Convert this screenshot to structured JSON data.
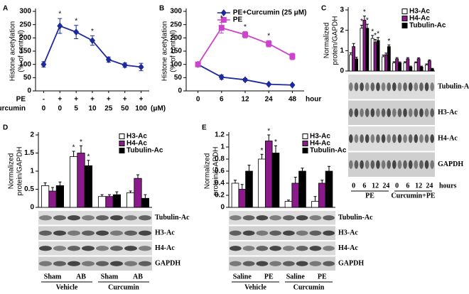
{
  "chart_data": [
    {
      "panel": "A",
      "type": "line",
      "ylabel": [
        "Histone acetylation",
        "(% of control)"
      ],
      "categories": [
        "0",
        "0",
        "5",
        "10",
        "25",
        "50",
        "100"
      ],
      "category_title": "Curcumin",
      "category_unit": "(μM)",
      "treatment": {
        "name": "PE",
        "labels": [
          "-",
          "+",
          "+",
          "+",
          "+",
          "+",
          "+"
        ]
      },
      "ylim": [
        0,
        300
      ],
      "yticks": [
        0,
        50,
        100,
        150,
        200,
        250,
        300
      ],
      "series": [
        {
          "color": "#1c2a9c",
          "marker": "diamond",
          "values": [
            100,
            245,
            222,
            190,
            118,
            97,
            90
          ],
          "errors": [
            10,
            28,
            25,
            18,
            10,
            8,
            14
          ],
          "significance": [
            null,
            "*",
            "*",
            "*",
            null,
            null,
            null
          ]
        }
      ]
    },
    {
      "panel": "B",
      "type": "line",
      "ylabel": [
        "Histone acetylation",
        "(% of control)"
      ],
      "categories": [
        "0",
        "6",
        "12",
        "24",
        "48"
      ],
      "xlabel": "hour",
      "ylim": [
        0,
        300
      ],
      "yticks": [
        0,
        50,
        100,
        150,
        200,
        250,
        300
      ],
      "legend": "top-right",
      "series": [
        {
          "name": "PE+Curcumin (25 μM)",
          "color": "#1c2a9c",
          "marker": "diamond",
          "values": [
            100,
            52,
            42,
            25,
            22
          ],
          "errors": [
            8,
            8,
            5,
            3,
            3
          ],
          "significance": [
            null,
            null,
            null,
            null,
            null
          ]
        },
        {
          "name": "PE",
          "color": "#cc44cc",
          "marker": "square",
          "values": [
            100,
            238,
            212,
            178,
            130
          ],
          "errors": [
            8,
            20,
            12,
            12,
            12
          ],
          "significance": [
            null,
            "*",
            "*",
            "*",
            null
          ]
        }
      ]
    },
    {
      "panel": "C",
      "type": "bar",
      "ylabel": [
        "Normalized",
        "protein/GAPDH"
      ],
      "categories": [
        "0",
        "6",
        "12",
        "24",
        "0",
        "6",
        "12",
        "24"
      ],
      "xlabel": "hours",
      "group_labels": [
        "PE",
        "Curcumin+PE"
      ],
      "ylim": [
        0,
        3
      ],
      "yticks": [
        0,
        1,
        2,
        3
      ],
      "legend": "top-right",
      "blots": [
        "Tubulin-Ac",
        "H3-Ac",
        "H4-Ac",
        "GAPDH"
      ],
      "series": [
        {
          "name": "H3-Ac",
          "color": "#ffffff",
          "values": [
            0.8,
            2.1,
            1.6,
            0.7,
            0.4,
            0.4,
            0.4,
            0.3
          ],
          "errors": [
            0.1,
            0.15,
            0.15,
            0.08,
            0.06,
            0.06,
            0.05,
            0.05
          ],
          "significance": [
            null,
            "*",
            "*",
            null,
            null,
            null,
            null,
            null
          ]
        },
        {
          "name": "H4-Ac",
          "color": "#8b1a8b",
          "values": [
            1.2,
            2.5,
            1.4,
            0.8,
            0.6,
            0.6,
            0.6,
            0.5
          ],
          "errors": [
            0.15,
            0.2,
            0.15,
            0.08,
            0.06,
            0.06,
            0.05,
            0.05
          ],
          "significance": [
            null,
            "*",
            "*",
            null,
            null,
            null,
            null,
            null
          ]
        },
        {
          "name": "Tubulin-Ac",
          "color": "#000000",
          "values": [
            0.6,
            2.1,
            1.5,
            1.2,
            0.4,
            0.2,
            0.2,
            0.1
          ],
          "errors": [
            0.08,
            0.2,
            0.15,
            0.08,
            0.05,
            0.04,
            0.04,
            0.03
          ],
          "significance": [
            null,
            "*",
            "*",
            "*",
            null,
            null,
            null,
            null
          ]
        }
      ]
    },
    {
      "panel": "D",
      "type": "bar",
      "ylabel": [
        "Normalized",
        "protein/GAPDH"
      ],
      "categories": [
        "Sham",
        "AB",
        "Sham",
        "AB"
      ],
      "group_labels": [
        "Vehicle",
        "Curcumin"
      ],
      "ylim": [
        0,
        2
      ],
      "yticks": [
        0,
        0.5,
        1,
        1.5,
        2
      ],
      "legend": "top-right",
      "blots": [
        "Tubulin-Ac",
        "H3-Ac",
        "H4-Ac",
        "GAPDH"
      ],
      "series": [
        {
          "name": "H3-Ac",
          "color": "#ffffff",
          "values": [
            0.6,
            1.4,
            0.3,
            0.4
          ],
          "errors": [
            0.08,
            0.15,
            0.05,
            0.05
          ],
          "significance": [
            null,
            "*",
            null,
            null
          ]
        },
        {
          "name": "H4-Ac",
          "color": "#8b1a8b",
          "values": [
            0.45,
            1.5,
            0.3,
            0.8
          ],
          "errors": [
            0.1,
            0.2,
            0.05,
            0.1
          ],
          "significance": [
            null,
            "*",
            null,
            null
          ]
        },
        {
          "name": "Tubulin-Ac",
          "color": "#000000",
          "values": [
            0.6,
            1.15,
            0.35,
            0.25
          ],
          "errors": [
            0.1,
            0.15,
            0.08,
            0.1
          ],
          "significance": [
            null,
            "*",
            null,
            null
          ]
        }
      ]
    },
    {
      "panel": "E",
      "type": "bar",
      "ylabel": [
        "Normalized",
        "protein/GAPDH"
      ],
      "categories": [
        "Saline",
        "PE",
        "Saline",
        "PE"
      ],
      "group_labels": [
        "Vehicle",
        "Curcumin"
      ],
      "ylim": [
        0,
        1.2
      ],
      "yticks": [
        0,
        0.2,
        0.4,
        0.6,
        0.8,
        1,
        1.2
      ],
      "legend": "top-right",
      "blots": [
        "Tubulin-Ac",
        "H3-Ac",
        "H4-Ac",
        "GAPDH"
      ],
      "series": [
        {
          "name": "H3-Ac",
          "color": "#ffffff",
          "values": [
            0.4,
            0.8,
            0.1,
            0.1
          ],
          "errors": [
            0.05,
            0.08,
            0.02,
            0.08
          ],
          "significance": [
            null,
            "*",
            null,
            null
          ]
        },
        {
          "name": "H4-Ac",
          "color": "#8b1a8b",
          "values": [
            0.3,
            1.1,
            0.4,
            0.4
          ],
          "errors": [
            0.08,
            0.1,
            0.1,
            0.05
          ],
          "significance": [
            null,
            "*",
            null,
            null
          ]
        },
        {
          "name": "Tubulin-Ac",
          "color": "#000000",
          "values": [
            0.6,
            0.9,
            0.6,
            0.6
          ],
          "errors": [
            0.1,
            0.12,
            0.05,
            0.08
          ],
          "significance": [
            null,
            "*",
            null,
            null
          ]
        }
      ]
    }
  ]
}
